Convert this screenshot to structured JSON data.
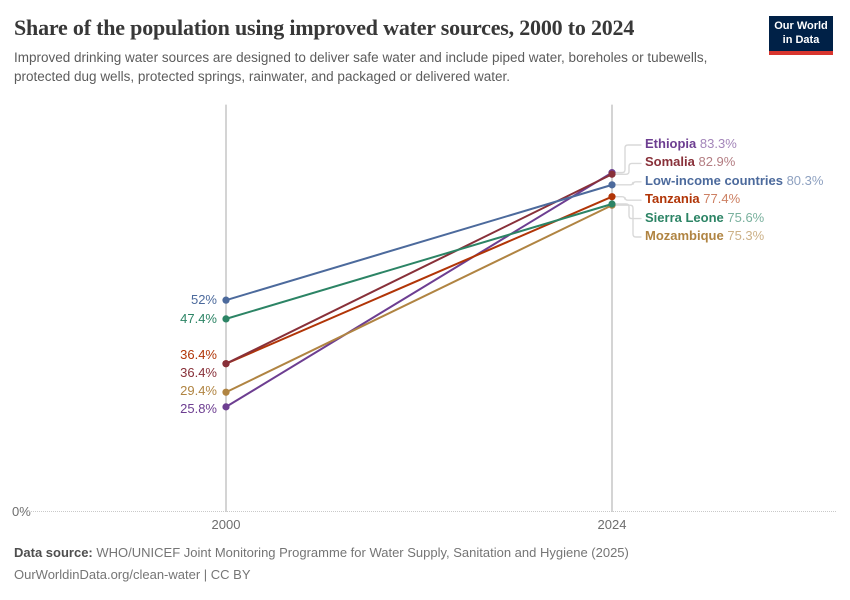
{
  "header": {
    "title": "Share of the population using improved water sources, 2000 to 2024",
    "subtitle": "Improved drinking water sources are designed to deliver safe water and include piped water, boreholes or tubewells, protected dug wells, protected springs, rainwater, and packaged or delivered water.",
    "logo": {
      "line1": "Our World",
      "line2": "in Data",
      "bg_color": "#002147",
      "accent_color": "#d8352e"
    }
  },
  "chart_data": {
    "type": "line",
    "variant": "slope",
    "title": "Share of the population using improved water sources, 2000 to 2024",
    "x": [
      2000,
      2024
    ],
    "x_tick_labels": [
      "2000",
      "2024"
    ],
    "ylim": [
      0,
      100
    ],
    "baseline_label": "0%",
    "grid": "baseline-dotted-only",
    "legend_position": "right-edge-labels",
    "axis_color": "#cdcdcd",
    "connector_color": "#d9d9d9",
    "series": [
      {
        "name": "Ethiopia",
        "values": [
          25.8,
          83.3
        ],
        "start_label": "25.8%",
        "end_label": "83.3%",
        "color": "#6d3e91"
      },
      {
        "name": "Somalia",
        "values": [
          36.4,
          82.9
        ],
        "start_label": "36.4%",
        "end_label": "82.9%",
        "color": "#883039"
      },
      {
        "name": "Low-income countries",
        "values": [
          52,
          80.3
        ],
        "start_label": "52%",
        "end_label": "80.3%",
        "color": "#4c6a9c"
      },
      {
        "name": "Tanzania",
        "values": [
          36.4,
          77.4
        ],
        "start_label": "36.4%",
        "end_label": "77.4%",
        "color": "#b13507"
      },
      {
        "name": "Sierra Leone",
        "values": [
          47.4,
          75.6
        ],
        "start_label": "47.4%",
        "end_label": "75.6%",
        "color": "#2c8465"
      },
      {
        "name": "Mozambique",
        "values": [
          29.4,
          75.3
        ],
        "start_label": "29.4%",
        "end_label": "75.3%",
        "color": "#b08442"
      }
    ]
  },
  "footer": {
    "datasource_label": "Data source:",
    "datasource_text": "WHO/UNICEF Joint Monitoring Programme for Water Supply, Sanitation and Hygiene (2025)",
    "citation": "OurWorldinData.org/clean-water | CC BY"
  }
}
